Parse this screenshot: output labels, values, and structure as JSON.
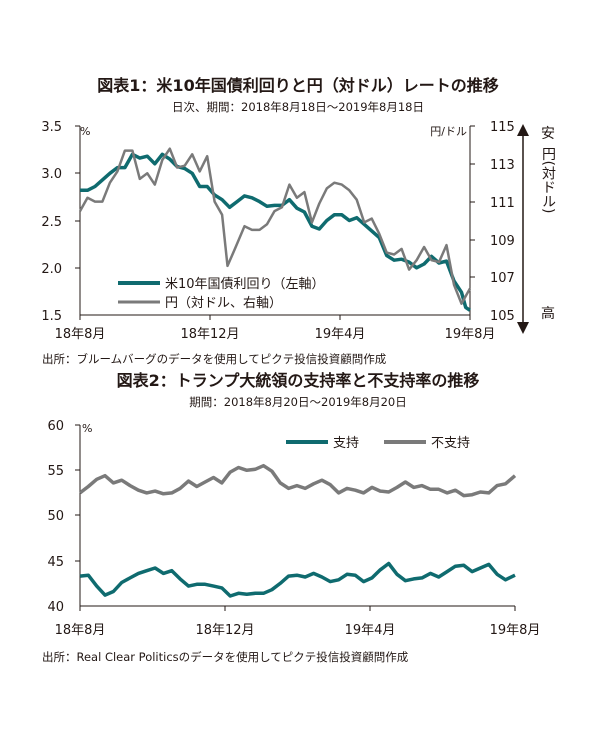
{
  "colors": {
    "teal": "#0f6b6f",
    "gray": "#7a7a7a",
    "text": "#231815"
  },
  "chart_data": [
    {
      "type": "line",
      "title": "図表1：米10年国債利回りと円（対ドル）レートの推移",
      "subtitle": "日次、期間：2018年8月18日～2019年8月18日",
      "left_unit": "%",
      "right_unit": "円/ドル",
      "ylim": [
        1.5,
        3.5
      ],
      "yticks": [
        "3.5",
        "3.0",
        "2.5",
        "2.0",
        "1.5"
      ],
      "y2lim": [
        105,
        115
      ],
      "y2ticks": [
        "115",
        "113",
        "111",
        "109",
        "107",
        "105"
      ],
      "xticks": [
        "18年8月",
        "18年12月",
        "19年4月",
        "19年8月"
      ],
      "x_tick_dates": [
        "2018-08-18",
        "2018-12-18",
        "2019-04-18",
        "2019-08-18"
      ],
      "side_labels": {
        "top": "安",
        "middle": "円(対ドル)",
        "bottom": "高"
      },
      "series": [
        {
          "name": "米10年国債利回り（左軸）",
          "axis": "left",
          "color": "#0f6b6f",
          "points": [
            [
              "2018-08-18",
              2.82
            ],
            [
              "2018-08-25",
              2.82
            ],
            [
              "2018-09-01",
              2.86
            ],
            [
              "2018-09-08",
              2.93
            ],
            [
              "2018-09-15",
              3.0
            ],
            [
              "2018-09-22",
              3.06
            ],
            [
              "2018-09-29",
              3.06
            ],
            [
              "2018-10-06",
              3.2
            ],
            [
              "2018-10-13",
              3.16
            ],
            [
              "2018-10-20",
              3.18
            ],
            [
              "2018-10-27",
              3.1
            ],
            [
              "2018-11-03",
              3.2
            ],
            [
              "2018-11-10",
              3.15
            ],
            [
              "2018-11-17",
              3.07
            ],
            [
              "2018-11-24",
              3.05
            ],
            [
              "2018-12-01",
              3.0
            ],
            [
              "2018-12-08",
              2.86
            ],
            [
              "2018-12-15",
              2.86
            ],
            [
              "2018-12-22",
              2.77
            ],
            [
              "2018-12-29",
              2.72
            ],
            [
              "2019-01-05",
              2.64
            ],
            [
              "2019-01-12",
              2.7
            ],
            [
              "2019-01-19",
              2.76
            ],
            [
              "2019-01-26",
              2.74
            ],
            [
              "2019-02-02",
              2.7
            ],
            [
              "2019-02-09",
              2.65
            ],
            [
              "2019-02-16",
              2.66
            ],
            [
              "2019-02-23",
              2.66
            ],
            [
              "2019-03-02",
              2.72
            ],
            [
              "2019-03-09",
              2.63
            ],
            [
              "2019-03-16",
              2.59
            ],
            [
              "2019-03-23",
              2.44
            ],
            [
              "2019-03-30",
              2.41
            ],
            [
              "2019-04-06",
              2.5
            ],
            [
              "2019-04-13",
              2.56
            ],
            [
              "2019-04-20",
              2.56
            ],
            [
              "2019-04-27",
              2.5
            ],
            [
              "2019-05-04",
              2.53
            ],
            [
              "2019-05-11",
              2.46
            ],
            [
              "2019-05-18",
              2.39
            ],
            [
              "2019-05-25",
              2.32
            ],
            [
              "2019-06-01",
              2.13
            ],
            [
              "2019-06-08",
              2.08
            ],
            [
              "2019-06-15",
              2.09
            ],
            [
              "2019-06-22",
              2.06
            ],
            [
              "2019-06-29",
              2.0
            ],
            [
              "2019-07-06",
              2.04
            ],
            [
              "2019-07-13",
              2.12
            ],
            [
              "2019-07-20",
              2.05
            ],
            [
              "2019-07-27",
              2.07
            ],
            [
              "2019-08-03",
              1.86
            ],
            [
              "2019-08-10",
              1.74
            ],
            [
              "2019-08-14",
              1.58
            ],
            [
              "2019-08-18",
              1.55
            ]
          ]
        },
        {
          "name": "円（対ドル、右軸）",
          "axis": "right",
          "color": "#7a7a7a",
          "points": [
            [
              "2018-08-18",
              110.5
            ],
            [
              "2018-08-25",
              111.2
            ],
            [
              "2018-09-01",
              111.0
            ],
            [
              "2018-09-08",
              111.0
            ],
            [
              "2018-09-15",
              112.0
            ],
            [
              "2018-09-22",
              112.6
            ],
            [
              "2018-09-29",
              113.7
            ],
            [
              "2018-10-06",
              113.7
            ],
            [
              "2018-10-13",
              112.2
            ],
            [
              "2018-10-20",
              112.5
            ],
            [
              "2018-10-27",
              111.9
            ],
            [
              "2018-11-03",
              113.2
            ],
            [
              "2018-11-10",
              113.8
            ],
            [
              "2018-11-17",
              112.8
            ],
            [
              "2018-11-24",
              112.9
            ],
            [
              "2018-12-01",
              113.5
            ],
            [
              "2018-12-08",
              112.6
            ],
            [
              "2018-12-15",
              113.4
            ],
            [
              "2018-12-22",
              111.0
            ],
            [
              "2018-12-29",
              110.3
            ],
            [
              "2019-01-03",
              107.6
            ],
            [
              "2019-01-10",
              108.5
            ],
            [
              "2019-01-19",
              109.7
            ],
            [
              "2019-01-26",
              109.5
            ],
            [
              "2019-02-02",
              109.5
            ],
            [
              "2019-02-09",
              109.8
            ],
            [
              "2019-02-16",
              110.5
            ],
            [
              "2019-02-23",
              110.7
            ],
            [
              "2019-03-02",
              111.9
            ],
            [
              "2019-03-09",
              111.2
            ],
            [
              "2019-03-16",
              111.5
            ],
            [
              "2019-03-23",
              109.9
            ],
            [
              "2019-03-30",
              110.9
            ],
            [
              "2019-04-06",
              111.7
            ],
            [
              "2019-04-13",
              112.0
            ],
            [
              "2019-04-20",
              111.9
            ],
            [
              "2019-04-27",
              111.6
            ],
            [
              "2019-05-04",
              111.1
            ],
            [
              "2019-05-11",
              109.9
            ],
            [
              "2019-05-18",
              110.1
            ],
            [
              "2019-05-25",
              109.3
            ],
            [
              "2019-06-01",
              108.3
            ],
            [
              "2019-06-08",
              108.2
            ],
            [
              "2019-06-15",
              108.5
            ],
            [
              "2019-06-22",
              107.4
            ],
            [
              "2019-06-29",
              107.9
            ],
            [
              "2019-07-06",
              108.6
            ],
            [
              "2019-07-13",
              107.9
            ],
            [
              "2019-07-20",
              107.8
            ],
            [
              "2019-07-27",
              108.7
            ],
            [
              "2019-08-03",
              106.6
            ],
            [
              "2019-08-10",
              105.6
            ],
            [
              "2019-08-14",
              106.0
            ],
            [
              "2019-08-18",
              106.4
            ]
          ]
        }
      ],
      "legend_position": "lower-left",
      "source": "出所：ブルームバーグのデータを使用してピクテ投信投資顧問作成"
    },
    {
      "type": "line",
      "title": "図表2：トランプ大統領の支持率と不支持率の推移",
      "subtitle": "期間：2018年8月20日～2019年8月20日",
      "left_unit": "%",
      "ylim": [
        40,
        60
      ],
      "yticks": [
        "60",
        "55",
        "50",
        "45",
        "40"
      ],
      "xticks": [
        "18年8月",
        "18年12月",
        "19年4月",
        "19年8月"
      ],
      "x_tick_dates": [
        "2018-08-20",
        "2018-12-20",
        "2019-04-20",
        "2019-08-20"
      ],
      "series": [
        {
          "name": "支持",
          "color": "#0f6b6f",
          "points": [
            [
              "2018-08-20",
              43.3
            ],
            [
              "2018-08-27",
              43.4
            ],
            [
              "2018-09-03",
              42.2
            ],
            [
              "2018-09-10",
              41.2
            ],
            [
              "2018-09-17",
              41.6
            ],
            [
              "2018-09-24",
              42.6
            ],
            [
              "2018-10-01",
              43.1
            ],
            [
              "2018-10-08",
              43.6
            ],
            [
              "2018-10-15",
              43.9
            ],
            [
              "2018-10-22",
              44.2
            ],
            [
              "2018-10-29",
              43.6
            ],
            [
              "2018-11-05",
              43.9
            ],
            [
              "2018-11-12",
              43.0
            ],
            [
              "2018-11-19",
              42.2
            ],
            [
              "2018-11-26",
              42.4
            ],
            [
              "2018-12-03",
              42.4
            ],
            [
              "2018-12-10",
              42.2
            ],
            [
              "2018-12-17",
              42.0
            ],
            [
              "2018-12-24",
              41.1
            ],
            [
              "2018-12-31",
              41.4
            ],
            [
              "2019-01-07",
              41.3
            ],
            [
              "2019-01-14",
              41.4
            ],
            [
              "2019-01-21",
              41.4
            ],
            [
              "2019-01-28",
              41.8
            ],
            [
              "2019-02-04",
              42.5
            ],
            [
              "2019-02-11",
              43.3
            ],
            [
              "2019-02-18",
              43.4
            ],
            [
              "2019-02-25",
              43.2
            ],
            [
              "2019-03-04",
              43.6
            ],
            [
              "2019-03-11",
              43.2
            ],
            [
              "2019-03-18",
              42.7
            ],
            [
              "2019-03-25",
              42.9
            ],
            [
              "2019-04-01",
              43.5
            ],
            [
              "2019-04-08",
              43.4
            ],
            [
              "2019-04-15",
              42.7
            ],
            [
              "2019-04-22",
              43.1
            ],
            [
              "2019-04-29",
              44.0
            ],
            [
              "2019-05-06",
              44.7
            ],
            [
              "2019-05-13",
              43.5
            ],
            [
              "2019-05-20",
              42.8
            ],
            [
              "2019-05-27",
              43.0
            ],
            [
              "2019-06-03",
              43.1
            ],
            [
              "2019-06-10",
              43.6
            ],
            [
              "2019-06-17",
              43.2
            ],
            [
              "2019-06-24",
              43.8
            ],
            [
              "2019-07-01",
              44.4
            ],
            [
              "2019-07-08",
              44.5
            ],
            [
              "2019-07-15",
              43.8
            ],
            [
              "2019-07-22",
              44.2
            ],
            [
              "2019-07-29",
              44.6
            ],
            [
              "2019-08-05",
              43.5
            ],
            [
              "2019-08-12",
              42.9
            ],
            [
              "2019-08-20",
              43.4
            ]
          ]
        },
        {
          "name": "不支持",
          "color": "#7a7a7a",
          "points": [
            [
              "2018-08-20",
              52.5
            ],
            [
              "2018-08-27",
              53.2
            ],
            [
              "2018-09-03",
              54.0
            ],
            [
              "2018-09-10",
              54.4
            ],
            [
              "2018-09-17",
              53.6
            ],
            [
              "2018-09-24",
              53.9
            ],
            [
              "2018-10-01",
              53.3
            ],
            [
              "2018-10-08",
              52.8
            ],
            [
              "2018-10-15",
              52.5
            ],
            [
              "2018-10-22",
              52.7
            ],
            [
              "2018-10-29",
              52.4
            ],
            [
              "2018-11-05",
              52.5
            ],
            [
              "2018-11-12",
              53.0
            ],
            [
              "2018-11-19",
              53.8
            ],
            [
              "2018-11-26",
              53.2
            ],
            [
              "2018-12-03",
              53.7
            ],
            [
              "2018-12-10",
              54.2
            ],
            [
              "2018-12-17",
              53.6
            ],
            [
              "2018-12-24",
              54.8
            ],
            [
              "2018-12-31",
              55.3
            ],
            [
              "2019-01-07",
              55.0
            ],
            [
              "2019-01-14",
              55.1
            ],
            [
              "2019-01-21",
              55.5
            ],
            [
              "2019-01-28",
              54.9
            ],
            [
              "2019-02-04",
              53.6
            ],
            [
              "2019-02-11",
              53.0
            ],
            [
              "2019-02-18",
              53.3
            ],
            [
              "2019-02-25",
              53.0
            ],
            [
              "2019-03-04",
              53.5
            ],
            [
              "2019-03-11",
              53.9
            ],
            [
              "2019-03-18",
              53.4
            ],
            [
              "2019-03-25",
              52.5
            ],
            [
              "2019-04-01",
              53.0
            ],
            [
              "2019-04-08",
              52.8
            ],
            [
              "2019-04-15",
              52.5
            ],
            [
              "2019-04-22",
              53.1
            ],
            [
              "2019-04-29",
              52.7
            ],
            [
              "2019-05-06",
              52.6
            ],
            [
              "2019-05-13",
              53.1
            ],
            [
              "2019-05-20",
              53.7
            ],
            [
              "2019-05-27",
              53.1
            ],
            [
              "2019-06-03",
              53.3
            ],
            [
              "2019-06-10",
              52.9
            ],
            [
              "2019-06-17",
              52.9
            ],
            [
              "2019-06-24",
              52.5
            ],
            [
              "2019-07-01",
              52.8
            ],
            [
              "2019-07-08",
              52.2
            ],
            [
              "2019-07-15",
              52.3
            ],
            [
              "2019-07-22",
              52.6
            ],
            [
              "2019-07-29",
              52.5
            ],
            [
              "2019-08-05",
              53.3
            ],
            [
              "2019-08-12",
              53.5
            ],
            [
              "2019-08-20",
              54.4
            ]
          ]
        }
      ],
      "legend_position": "top-right",
      "source": "出所：Real Clear Politicsのデータを使用してピクテ投信投資顧問作成"
    }
  ]
}
